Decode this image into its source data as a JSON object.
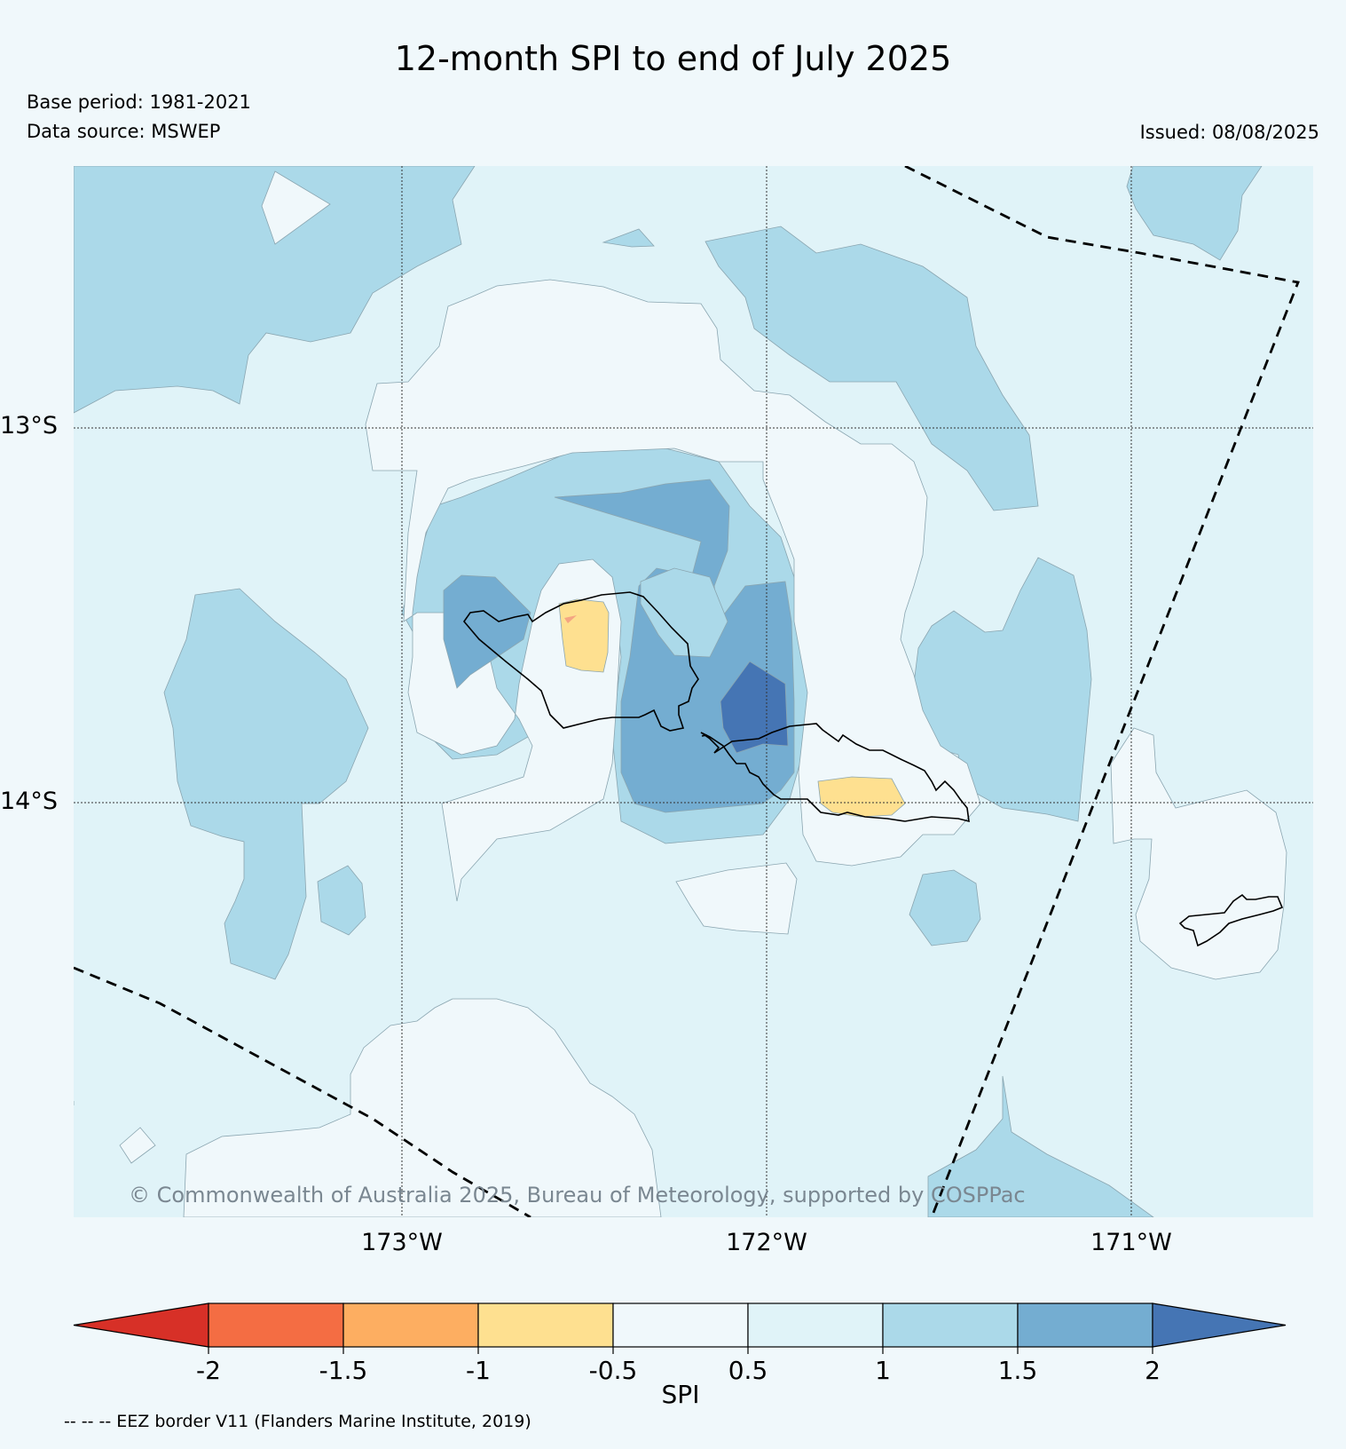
{
  "title": "12-month SPI to end of July 2025",
  "base_period": "Base period: 1981-2021",
  "data_source": "Data source: MSWEP",
  "issued": "Issued: 08/08/2025",
  "lat_labels": [
    "13°S",
    "14°S"
  ],
  "lon_labels": [
    "173°W",
    "172°W",
    "171°W"
  ],
  "copyright": "© Commonwealth of Australia 2025, Bureau of Meteorology, supported by COSPPac",
  "colorbar": {
    "label": "SPI",
    "ticks": [
      "-2",
      "-1.5",
      "-1",
      "-0.5",
      "0.5",
      "1",
      "1.5",
      "2"
    ],
    "colors": [
      "#d73027",
      "#f46d43",
      "#fdae61",
      "#fee090",
      "#f0f8fb",
      "#e0f3f8",
      "#abd9e9",
      "#74add1",
      "#4575b4"
    ]
  },
  "footnote": "-- -- -- EEZ border V11 (Flanders Marine Institute, 2019)"
}
